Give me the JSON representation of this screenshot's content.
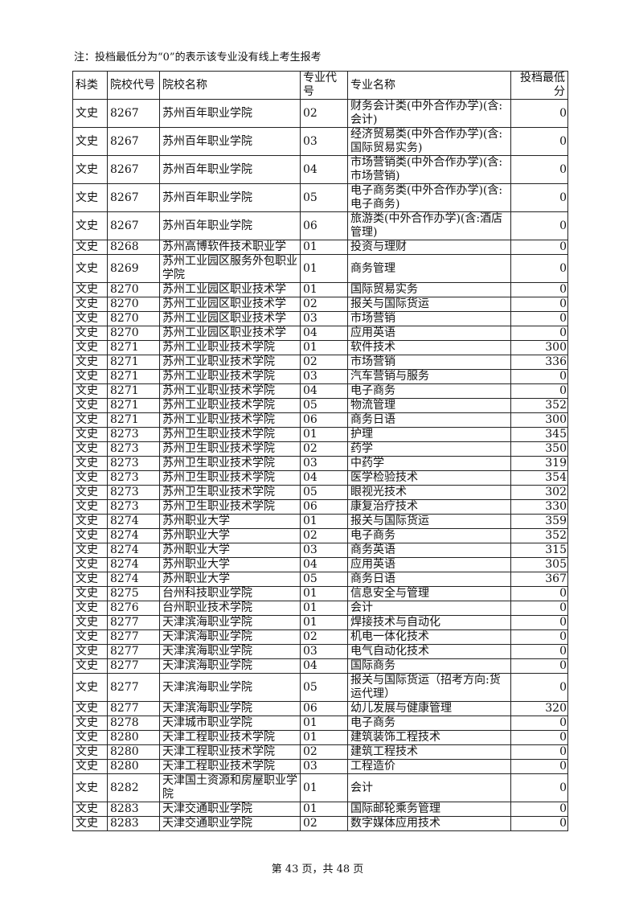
{
  "note": "注：投档最低分为“0”的表示该专业没有线上考生报考",
  "table": {
    "header": [
      "科类",
      "院校代号",
      "院校名称",
      "专业代号",
      "专业名称",
      "投档最低分"
    ],
    "rows": [
      [
        "文史",
        "8267",
        "苏州百年职业学院",
        "02",
        "财务会计类(中外合作办学)(含:会计)",
        0
      ],
      [
        "文史",
        "8267",
        "苏州百年职业学院",
        "03",
        "经济贸易类(中外合作办学)(含:国际贸易实务)",
        0
      ],
      [
        "文史",
        "8267",
        "苏州百年职业学院",
        "04",
        "市场营销类(中外合作办学)(含:市场营销)",
        0
      ],
      [
        "文史",
        "8267",
        "苏州百年职业学院",
        "05",
        "电子商务类(中外合作办学)(含:电子商务)",
        0
      ],
      [
        "文史",
        "8267",
        "苏州百年职业学院",
        "06",
        "旅游类(中外合作办学)(含:酒店管理)",
        0
      ],
      [
        "文史",
        "8268",
        "苏州高博软件技术职业学",
        "01",
        "投资与理财",
        0
      ],
      [
        "文史",
        "8269",
        "苏州工业园区服务外包职业学院",
        "01",
        "商务管理",
        0
      ],
      [
        "文史",
        "8270",
        "苏州工业园区职业技术学",
        "01",
        "国际贸易实务",
        0
      ],
      [
        "文史",
        "8270",
        "苏州工业园区职业技术学",
        "02",
        "报关与国际货运",
        0
      ],
      [
        "文史",
        "8270",
        "苏州工业园区职业技术学",
        "03",
        "市场营销",
        0
      ],
      [
        "文史",
        "8270",
        "苏州工业园区职业技术学",
        "04",
        "应用英语",
        0
      ],
      [
        "文史",
        "8271",
        "苏州工业职业技术学院",
        "01",
        "软件技术",
        300
      ],
      [
        "文史",
        "8271",
        "苏州工业职业技术学院",
        "02",
        "市场营销",
        336
      ],
      [
        "文史",
        "8271",
        "苏州工业职业技术学院",
        "03",
        "汽车营销与服务",
        0
      ],
      [
        "文史",
        "8271",
        "苏州工业职业技术学院",
        "04",
        "电子商务",
        0
      ],
      [
        "文史",
        "8271",
        "苏州工业职业技术学院",
        "05",
        "物流管理",
        352
      ],
      [
        "文史",
        "8271",
        "苏州工业职业技术学院",
        "06",
        "商务日语",
        300
      ],
      [
        "文史",
        "8273",
        "苏州卫生职业技术学院",
        "01",
        "护理",
        345
      ],
      [
        "文史",
        "8273",
        "苏州卫生职业技术学院",
        "02",
        "药学",
        350
      ],
      [
        "文史",
        "8273",
        "苏州卫生职业技术学院",
        "03",
        "中药学",
        319
      ],
      [
        "文史",
        "8273",
        "苏州卫生职业技术学院",
        "04",
        "医学检验技术",
        354
      ],
      [
        "文史",
        "8273",
        "苏州卫生职业技术学院",
        "05",
        "眼视光技术",
        302
      ],
      [
        "文史",
        "8273",
        "苏州卫生职业技术学院",
        "06",
        "康复治疗技术",
        330
      ],
      [
        "文史",
        "8274",
        "苏州职业大学",
        "01",
        "报关与国际货运",
        359
      ],
      [
        "文史",
        "8274",
        "苏州职业大学",
        "02",
        "电子商务",
        352
      ],
      [
        "文史",
        "8274",
        "苏州职业大学",
        "03",
        "商务英语",
        315
      ],
      [
        "文史",
        "8274",
        "苏州职业大学",
        "04",
        "应用英语",
        305
      ],
      [
        "文史",
        "8274",
        "苏州职业大学",
        "05",
        "商务日语",
        367
      ],
      [
        "文史",
        "8275",
        "台州科技职业学院",
        "01",
        "信息安全与管理",
        0
      ],
      [
        "文史",
        "8276",
        "台州职业技术学院",
        "01",
        "会计",
        0
      ],
      [
        "文史",
        "8277",
        "天津滨海职业学院",
        "01",
        "焊接技术与自动化",
        0
      ],
      [
        "文史",
        "8277",
        "天津滨海职业学院",
        "02",
        "机电一体化技术",
        0
      ],
      [
        "文史",
        "8277",
        "天津滨海职业学院",
        "03",
        "电气自动化技术",
        0
      ],
      [
        "文史",
        "8277",
        "天津滨海职业学院",
        "04",
        "国际商务",
        0
      ],
      [
        "文史",
        "8277",
        "天津滨海职业学院",
        "05",
        "报关与国际货运（招考方向:货运代理）",
        0
      ],
      [
        "文史",
        "8277",
        "天津滨海职业学院",
        "06",
        "幼儿发展与健康管理",
        320
      ],
      [
        "文史",
        "8278",
        "天津城市职业学院",
        "01",
        "电子商务",
        0
      ],
      [
        "文史",
        "8280",
        "天津工程职业技术学院",
        "01",
        "建筑装饰工程技术",
        0
      ],
      [
        "文史",
        "8280",
        "天津工程职业技术学院",
        "02",
        "建筑工程技术",
        0
      ],
      [
        "文史",
        "8280",
        "天津工程职业技术学院",
        "03",
        "工程造价",
        0
      ],
      [
        "文史",
        "8282",
        "天津国土资源和房屋职业学院",
        "01",
        "会计",
        0
      ],
      [
        "文史",
        "8283",
        "天津交通职业学院",
        "01",
        "国际邮轮乘务管理",
        0
      ],
      [
        "文史",
        "8283",
        "天津交通职业学院",
        "02",
        "数字媒体应用技术",
        0
      ]
    ]
  },
  "footer": "第 43 页，共 48 页"
}
